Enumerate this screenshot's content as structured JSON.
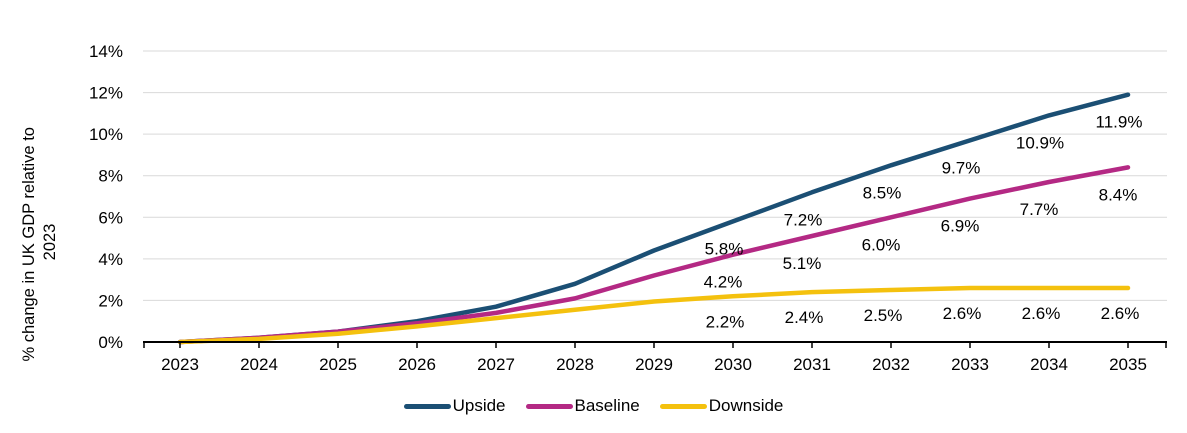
{
  "chart_data": {
    "type": "line",
    "title": "",
    "xlabel": "",
    "ylabel": "% change in UK GDP relative to 2023",
    "ylabel_lines": [
      "% change in UK GDP relative to",
      "2023"
    ],
    "x": [
      2023,
      2024,
      2025,
      2026,
      2027,
      2028,
      2029,
      2030,
      2031,
      2032,
      2033,
      2034,
      2035
    ],
    "ylim": [
      0,
      14
    ],
    "ytick_labels": [
      "0%",
      "2%",
      "4%",
      "6%",
      "8%",
      "10%",
      "12%",
      "14%"
    ],
    "ytick_values": [
      0,
      2,
      4,
      6,
      8,
      10,
      12,
      14
    ],
    "grid": "horizontal",
    "gridline_color": "#D9D9D9",
    "axis_color": "#000000",
    "legend_position": "bottom",
    "series": [
      {
        "name": "Upside",
        "color": "#1B4F74",
        "values": [
          0,
          0.2,
          0.5,
          1.0,
          1.7,
          2.8,
          4.4,
          5.8,
          7.2,
          8.5,
          9.7,
          10.9,
          11.9
        ],
        "point_labels": {
          "2030": "5.8%",
          "2031": "7.2%",
          "2032": "8.5%",
          "2033": "9.7%",
          "2034": "10.9%",
          "2035": "11.9%"
        }
      },
      {
        "name": "Baseline",
        "color": "#B42984",
        "values": [
          0,
          0.2,
          0.5,
          0.9,
          1.4,
          2.1,
          3.2,
          4.2,
          5.1,
          6.0,
          6.9,
          7.7,
          8.4
        ],
        "point_labels": {
          "2030": "4.2%",
          "2031": "5.1%",
          "2032": "6.0%",
          "2033": "6.9%",
          "2034": "7.7%",
          "2035": "8.4%"
        }
      },
      {
        "name": "Downside",
        "color": "#F4C10E",
        "values": [
          0,
          0.15,
          0.4,
          0.75,
          1.15,
          1.55,
          1.95,
          2.2,
          2.4,
          2.5,
          2.6,
          2.6,
          2.6
        ],
        "point_labels": {
          "2030": "2.2%",
          "2031": "2.4%",
          "2032": "2.5%",
          "2033": "2.6%",
          "2034": "2.6%",
          "2035": "2.6%"
        }
      }
    ]
  }
}
